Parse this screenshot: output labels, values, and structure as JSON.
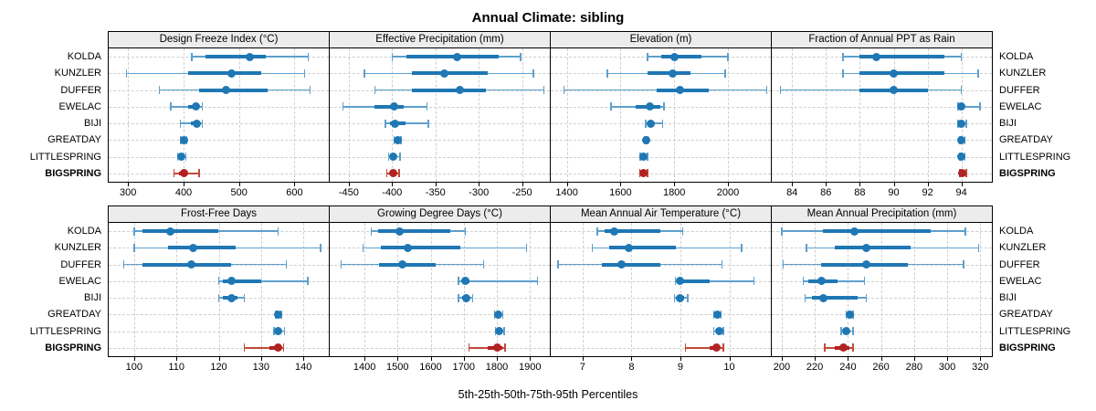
{
  "title": "Annual Climate: sibling",
  "caption": "5th-25th-50th-75th-95th Percentiles",
  "sites": [
    "KOLDA",
    "KUNZLER",
    "DUFFER",
    "EWELAC",
    "BIJI",
    "GREATDAY",
    "LITTLESPRING",
    "BIGSPRING"
  ],
  "highlight_site": "BIGSPRING",
  "percentile_labels": [
    "5th",
    "25th",
    "50th",
    "75th",
    "95th"
  ],
  "colors": {
    "series": "#1f77b4",
    "series_light": "#5ea0cc",
    "highlight": "#b22222",
    "highlight_light": "#c04a3a",
    "strip_bg": "#ececec",
    "grid": "#cfcfcf",
    "border": "#000000"
  },
  "chart_data": {
    "type": "scatter",
    "subtype": "percentile-interval-dotplot",
    "layout": "2 rows x 4 columns of panels, shared site axis, BIGSPRING highlighted red",
    "percentiles": [
      5,
      25,
      50,
      75,
      95
    ],
    "panels": [
      {
        "title": "Design Freeze Index (°C)",
        "domain": [
          265,
          662
        ],
        "ticks": [
          300,
          400,
          500,
          600
        ],
        "series": [
          {
            "name": "KOLDA",
            "values": [
              415,
              440,
              520,
              548,
              625
            ]
          },
          {
            "name": "KUNZLER",
            "values": [
              297,
              408,
              487,
              540,
              618
            ]
          },
          {
            "name": "DUFFER",
            "values": [
              356,
              428,
              477,
              552,
              628
            ]
          },
          {
            "name": "EWELAC",
            "values": [
              377,
              408,
              422,
              429,
              434
            ]
          },
          {
            "name": "BIJI",
            "values": [
              394,
              413,
              424,
              430,
              434
            ]
          },
          {
            "name": "GREATDAY",
            "values": [
              395,
              398,
              401,
              403,
              406
            ]
          },
          {
            "name": "LITTLESPRING",
            "values": [
              389,
              392,
              396,
              399,
              404
            ]
          },
          {
            "name": "BIGSPRING",
            "values": [
              383,
              391,
              400,
              406,
              428
            ]
          }
        ]
      },
      {
        "title": "Effective Precipitation (mm)",
        "domain": [
          -472,
          -218
        ],
        "ticks": [
          -450,
          -400,
          -350,
          -300,
          -250
        ],
        "series": [
          {
            "name": "KOLDA",
            "values": [
              -400,
              -383,
              -325,
              -277,
              -252
            ]
          },
          {
            "name": "KUNZLER",
            "values": [
              -432,
              -377,
              -340,
              -290,
              -237
            ]
          },
          {
            "name": "DUFFER",
            "values": [
              -420,
              -377,
              -322,
              -292,
              -225
            ]
          },
          {
            "name": "EWELAC",
            "values": [
              -457,
              -420,
              -398,
              -387,
              -360
            ]
          },
          {
            "name": "BIJI",
            "values": [
              -408,
              -403,
              -397,
              -385,
              -358
            ]
          },
          {
            "name": "GREATDAY",
            "values": [
              -398,
              -396,
              -394,
              -392,
              -390
            ]
          },
          {
            "name": "LITTLESPRING",
            "values": [
              -404,
              -401,
              -399,
              -396,
              -391
            ]
          },
          {
            "name": "BIGSPRING",
            "values": [
              -406,
              -402,
              -399,
              -396,
              -392
            ]
          }
        ]
      },
      {
        "title": "Elevation (m)",
        "domain": [
          1340,
          2160
        ],
        "ticks": [
          1400,
          1600,
          1800,
          2000
        ],
        "series": [
          {
            "name": "KOLDA",
            "values": [
              1700,
              1750,
              1800,
              1900,
              2000
            ]
          },
          {
            "name": "KUNZLER",
            "values": [
              1550,
              1700,
              1795,
              1860,
              1990
            ]
          },
          {
            "name": "DUFFER",
            "values": [
              1390,
              1735,
              1820,
              1930,
              2145
            ]
          },
          {
            "name": "EWELAC",
            "values": [
              1565,
              1656,
              1708,
              1750,
              1762
            ]
          },
          {
            "name": "BIJI",
            "values": [
              1694,
              1703,
              1713,
              1725,
              1757
            ]
          },
          {
            "name": "GREATDAY",
            "values": [
              1690,
              1692,
              1695,
              1698,
              1702
            ]
          },
          {
            "name": "LITTLESPRING",
            "values": [
              1674,
              1681,
              1686,
              1693,
              1700
            ]
          },
          {
            "name": "BIGSPRING",
            "values": [
              1672,
              1680,
              1686,
              1694,
              1700
            ]
          }
        ]
      },
      {
        "title": "Fraction of Annual PPT as Rain",
        "domain": [
          82.8,
          95.8
        ],
        "ticks": [
          84,
          86,
          88,
          90,
          92,
          94
        ],
        "series": [
          {
            "name": "KOLDA",
            "values": [
              87,
              88,
              89,
              93,
              94
            ]
          },
          {
            "name": "KUNZLER",
            "values": [
              87,
              88,
              90,
              93,
              95
            ]
          },
          {
            "name": "DUFFER",
            "values": [
              83.3,
              88,
              90,
              92,
              94
            ]
          },
          {
            "name": "EWELAC",
            "values": [
              93.8,
              93.9,
              94,
              94.2,
              95.1
            ]
          },
          {
            "name": "BIJI",
            "values": [
              93.8,
              93.9,
              94,
              94.1,
              94.3
            ]
          },
          {
            "name": "GREATDAY",
            "values": [
              93.9,
              93.95,
              94,
              94.1,
              94.2
            ]
          },
          {
            "name": "LITTLESPRING",
            "values": [
              93.9,
              93.95,
              94,
              94.1,
              94.2
            ]
          },
          {
            "name": "BIGSPRING",
            "values": [
              93.9,
              94,
              94.05,
              94.15,
              94.3
            ]
          }
        ]
      },
      {
        "title": "Frost-Free Days",
        "domain": [
          94,
          146
        ],
        "ticks": [
          100,
          110,
          120,
          130,
          140
        ],
        "series": [
          {
            "name": "KOLDA",
            "values": [
              100,
              102,
              108.5,
              120,
              134
            ]
          },
          {
            "name": "KUNZLER",
            "values": [
              100,
              108,
              114,
              124,
              144
            ]
          },
          {
            "name": "DUFFER",
            "values": [
              97.5,
              102,
              113.5,
              123,
              136
            ]
          },
          {
            "name": "EWELAC",
            "values": [
              120,
              121,
              123,
              130,
              141
            ]
          },
          {
            "name": "BIJI",
            "values": [
              120,
              121,
              123,
              124.5,
              126
            ]
          },
          {
            "name": "GREATDAY",
            "values": [
              133.5,
              133.8,
              134,
              134.4,
              134.8
            ]
          },
          {
            "name": "LITTLESPRING",
            "values": [
              133,
              133.5,
              134,
              134.6,
              135.5
            ]
          },
          {
            "name": "BIGSPRING",
            "values": [
              126,
              132,
              134,
              134.6,
              135.3
            ]
          }
        ]
      },
      {
        "title": "Growing Degree Days (°C)",
        "domain": [
          1295,
          1960
        ],
        "ticks": [
          1400,
          1500,
          1600,
          1700,
          1800,
          1900
        ],
        "series": [
          {
            "name": "KOLDA",
            "values": [
              1420,
              1440,
              1505,
              1660,
              1705
            ]
          },
          {
            "name": "KUNZLER",
            "values": [
              1395,
              1450,
              1530,
              1690,
              1890
            ]
          },
          {
            "name": "DUFFER",
            "values": [
              1330,
              1445,
              1515,
              1615,
              1760
            ]
          },
          {
            "name": "EWELAC",
            "values": [
              1684,
              1694,
              1706,
              1718,
              1922
            ]
          },
          {
            "name": "BIJI",
            "values": [
              1684,
              1695,
              1707,
              1716,
              1727
            ]
          },
          {
            "name": "GREATDAY",
            "values": [
              1793,
              1800,
              1805,
              1810,
              1818
            ]
          },
          {
            "name": "LITTLESPRING",
            "values": [
              1795,
              1801,
              1807,
              1813,
              1822
            ]
          },
          {
            "name": "BIGSPRING",
            "values": [
              1716,
              1772,
              1800,
              1816,
              1824
            ]
          }
        ]
      },
      {
        "title": "Mean Annual Air Temperature (°C)",
        "domain": [
          6.35,
          10.85
        ],
        "ticks": [
          7,
          8,
          9,
          10
        ],
        "series": [
          {
            "name": "KOLDA",
            "values": [
              7.3,
              7.45,
              7.65,
              8.6,
              9.05
            ]
          },
          {
            "name": "KUNZLER",
            "values": [
              7.2,
              7.55,
              7.95,
              8.9,
              10.25
            ]
          },
          {
            "name": "DUFFER",
            "values": [
              6.5,
              7.4,
              7.8,
              8.6,
              9.85
            ]
          },
          {
            "name": "EWELAC",
            "values": [
              8.9,
              8.95,
              9.0,
              9.6,
              10.5
            ]
          },
          {
            "name": "BIJI",
            "values": [
              8.88,
              8.95,
              9.0,
              9.08,
              9.15
            ]
          },
          {
            "name": "GREATDAY",
            "values": [
              9.68,
              9.72,
              9.75,
              9.79,
              9.83
            ]
          },
          {
            "name": "LITTLESPRING",
            "values": [
              9.68,
              9.75,
              9.8,
              9.84,
              9.88
            ]
          },
          {
            "name": "BIGSPRING",
            "values": [
              9.1,
              9.6,
              9.73,
              9.81,
              9.88
            ]
          }
        ]
      },
      {
        "title": "Mean Annual Precipitation (mm)",
        "domain": [
          194,
          327
        ],
        "ticks": [
          200,
          220,
          240,
          260,
          280,
          300,
          320
        ],
        "series": [
          {
            "name": "KOLDA",
            "values": [
              200,
              225,
              244,
              290,
              311
            ]
          },
          {
            "name": "KUNZLER",
            "values": [
              215,
              232,
              251,
              278,
              319
            ]
          },
          {
            "name": "DUFFER",
            "values": [
              201,
              224,
              251,
              276,
              310
            ]
          },
          {
            "name": "EWELAC",
            "values": [
              213,
              216,
              224,
              234,
              250
            ]
          },
          {
            "name": "BIJI",
            "values": [
              214,
              218,
              225,
              246,
              251
            ]
          },
          {
            "name": "GREATDAY",
            "values": [
              239,
              240,
              241,
              242,
              243
            ]
          },
          {
            "name": "LITTLESPRING",
            "values": [
              236,
              238,
              239,
              241,
              243
            ]
          },
          {
            "name": "BIGSPRING",
            "values": [
              226,
              232,
              237.5,
              241,
              243
            ]
          }
        ]
      }
    ]
  }
}
